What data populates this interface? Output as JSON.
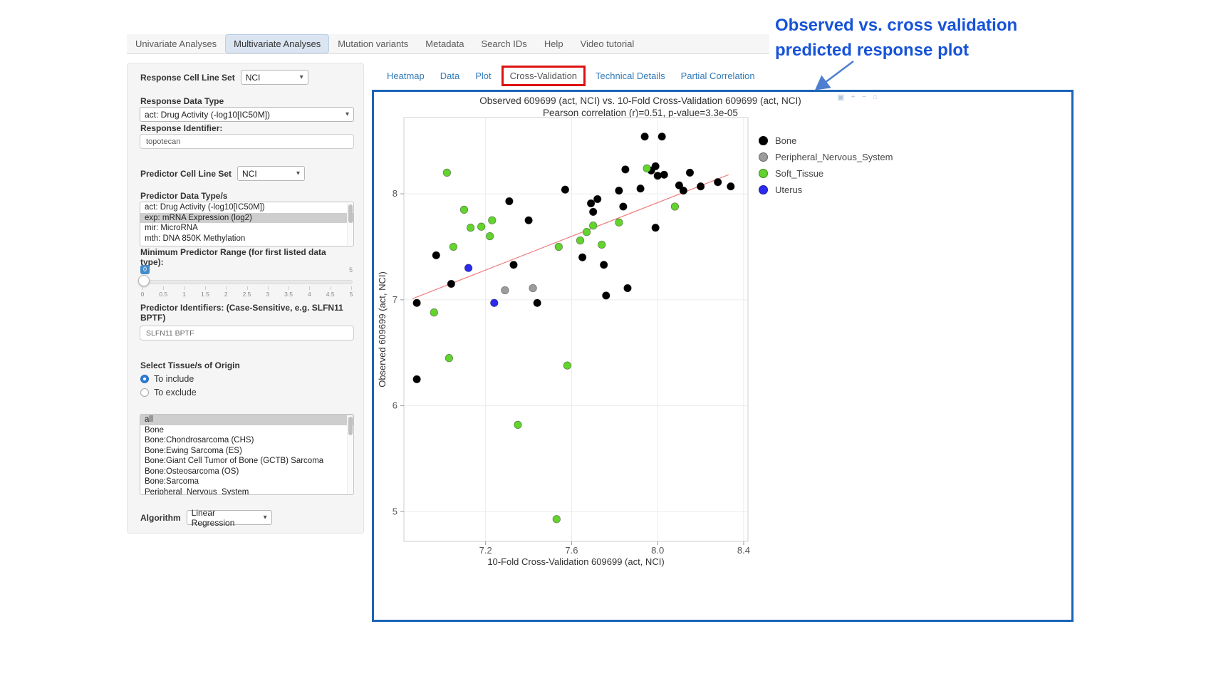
{
  "annotation": {
    "line1": "Observed vs. cross validation",
    "line2": "predicted response plot"
  },
  "colors": {
    "link_blue": "#337ab7",
    "highlight_red": "#dd1111",
    "panel_border_blue": "#1a64b6",
    "annotation_blue": "#1753d8",
    "slider_badge_blue": "#428bca"
  },
  "navbar": {
    "items": [
      {
        "label": "Univariate Analyses",
        "active": false
      },
      {
        "label": "Multivariate Analyses",
        "active": true
      },
      {
        "label": "Mutation variants",
        "active": false
      },
      {
        "label": "Metadata",
        "active": false
      },
      {
        "label": "Search IDs",
        "active": false
      },
      {
        "label": "Help",
        "active": false
      },
      {
        "label": "Video tutorial",
        "active": false
      }
    ]
  },
  "sidebar": {
    "response_cell_line_set": {
      "label": "Response Cell Line Set",
      "value": "NCI"
    },
    "response_data_type": {
      "label": "Response Data Type",
      "value": "act: Drug Activity (-log10[IC50M])"
    },
    "response_identifier": {
      "label": "Response Identifier:",
      "value": "topotecan"
    },
    "predictor_cell_line_set": {
      "label": "Predictor Cell Line Set",
      "value": "NCI"
    },
    "predictor_data_types": {
      "label": "Predictor Data Type/s",
      "options": [
        "act: Drug Activity (-log10[IC50M])",
        "exp: mRNA Expression (log2)",
        "mir: MicroRNA",
        "mth: DNA 850K Methylation"
      ],
      "selected": "exp: mRNA Expression (log2)"
    },
    "min_predictor_range": {
      "label": "Minimum Predictor Range (for first listed data type):",
      "value": "0",
      "max_label": "5",
      "ticks": [
        "0",
        "0.5",
        "1",
        "1.5",
        "2",
        "2.5",
        "3",
        "3.5",
        "4",
        "4.5",
        "5"
      ]
    },
    "predictor_identifiers": {
      "label": "Predictor Identifiers: (Case-Sensitive, e.g. SLFN11 BPTF)",
      "value": "SLFN11 BPTF"
    },
    "tissue_origin": {
      "label": "Select Tissue/s of Origin",
      "radios": [
        {
          "label": "To include",
          "checked": true
        },
        {
          "label": "To exclude",
          "checked": false
        }
      ]
    },
    "tissue_list": {
      "options": [
        "all",
        "Bone",
        "Bone:Chondrosarcoma (CHS)",
        "Bone:Ewing Sarcoma (ES)",
        "Bone:Giant Cell Tumor of Bone (GCTB) Sarcoma",
        "Bone:Osteosarcoma (OS)",
        "Bone:Sarcoma",
        "Peripheral_Nervous_System"
      ],
      "selected": "all"
    },
    "algorithm": {
      "label": "Algorithm",
      "value": "Linear Regression"
    }
  },
  "main_tabs": {
    "items": [
      {
        "label": "Heatmap",
        "active": false,
        "highlighted": false
      },
      {
        "label": "Data",
        "active": false,
        "highlighted": false
      },
      {
        "label": "Plot",
        "active": false,
        "highlighted": false
      },
      {
        "label": "Cross-Validation",
        "active": true,
        "highlighted": true
      },
      {
        "label": "Technical Details",
        "active": false,
        "highlighted": false
      },
      {
        "label": "Partial Correlation",
        "active": false,
        "highlighted": false
      }
    ]
  },
  "plot_toolbar": {
    "icons": [
      {
        "name": "camera-icon",
        "glyph": "▣"
      },
      {
        "name": "zoom-in-icon",
        "glyph": "+"
      },
      {
        "name": "zoom-out-icon",
        "glyph": "−"
      },
      {
        "name": "reset-axes-icon",
        "glyph": "⌂"
      }
    ]
  },
  "chart_data": {
    "type": "scatter",
    "title": "Observed 609699 (act, NCI) vs. 10-Fold Cross-Validation 609699 (act, NCI)",
    "subtitle": "Pearson correlation (r)=0.51, p-value=3.3e-05",
    "xlabel": "10-Fold Cross-Validation 609699 (act, NCI)",
    "ylabel": "Observed 609699 (act, NCI)",
    "xlim": [
      6.82,
      8.42
    ],
    "ylim": [
      4.72,
      8.72
    ],
    "xticks": [
      {
        "v": 7.2,
        "label": "7.2"
      },
      {
        "v": 7.6,
        "label": "7.6"
      },
      {
        "v": 8.0,
        "label": "8.0"
      },
      {
        "v": 8.4,
        "label": "8.4"
      }
    ],
    "yticks": [
      {
        "v": 5,
        "label": "5"
      },
      {
        "v": 6,
        "label": "6"
      },
      {
        "v": 7,
        "label": "7"
      },
      {
        "v": 8,
        "label": "8"
      }
    ],
    "grid": true,
    "legend_position": "right",
    "pearson_r": 0.51,
    "p_value": "3.3e-05",
    "trend_line": {
      "x1": 6.86,
      "y1": 7.01,
      "x2": 8.33,
      "y2": 8.18,
      "color": "#ee7d7d"
    },
    "series": [
      {
        "name": "Bone",
        "color": "#000000",
        "points": [
          [
            6.88,
            6.97
          ],
          [
            6.88,
            6.25
          ],
          [
            6.97,
            7.42
          ],
          [
            7.04,
            7.15
          ],
          [
            7.31,
            7.93
          ],
          [
            7.33,
            7.33
          ],
          [
            7.4,
            7.75
          ],
          [
            7.44,
            6.97
          ],
          [
            7.57,
            8.04
          ],
          [
            7.65,
            7.4
          ],
          [
            7.69,
            7.91
          ],
          [
            7.7,
            7.83
          ],
          [
            7.72,
            7.95
          ],
          [
            7.75,
            7.33
          ],
          [
            7.76,
            7.04
          ],
          [
            7.82,
            8.03
          ],
          [
            7.84,
            7.88
          ],
          [
            7.85,
            8.23
          ],
          [
            7.86,
            7.11
          ],
          [
            7.92,
            8.05
          ],
          [
            7.94,
            8.54
          ],
          [
            7.97,
            8.22
          ],
          [
            7.99,
            8.26
          ],
          [
            8.0,
            8.17
          ],
          [
            8.02,
            8.54
          ],
          [
            8.03,
            8.18
          ],
          [
            7.99,
            7.68
          ],
          [
            8.1,
            8.08
          ],
          [
            8.12,
            8.03
          ],
          [
            8.15,
            8.2
          ],
          [
            8.2,
            8.07
          ],
          [
            8.28,
            8.11
          ],
          [
            8.34,
            8.07
          ]
        ]
      },
      {
        "name": "Peripheral_Nervous_System",
        "color": "#9c9c9c",
        "points": [
          [
            7.29,
            7.09
          ],
          [
            7.42,
            7.11
          ]
        ]
      },
      {
        "name": "Soft_Tissue",
        "color": "#63d32e",
        "points": [
          [
            7.02,
            8.2
          ],
          [
            7.1,
            7.85
          ],
          [
            7.13,
            7.68
          ],
          [
            7.18,
            7.69
          ],
          [
            7.22,
            7.6
          ],
          [
            7.23,
            7.75
          ],
          [
            7.05,
            7.5
          ],
          [
            6.96,
            6.88
          ],
          [
            7.03,
            6.45
          ],
          [
            7.35,
            5.82
          ],
          [
            7.53,
            4.93
          ],
          [
            7.58,
            6.38
          ],
          [
            7.54,
            7.5
          ],
          [
            7.64,
            7.56
          ],
          [
            7.67,
            7.64
          ],
          [
            7.7,
            7.7
          ],
          [
            7.74,
            7.52
          ],
          [
            7.82,
            7.73
          ],
          [
            7.95,
            8.24
          ],
          [
            8.08,
            7.88
          ]
        ]
      },
      {
        "name": "Uterus",
        "color": "#2a2af0",
        "points": [
          [
            7.12,
            7.3
          ],
          [
            7.24,
            6.97
          ]
        ]
      }
    ]
  }
}
